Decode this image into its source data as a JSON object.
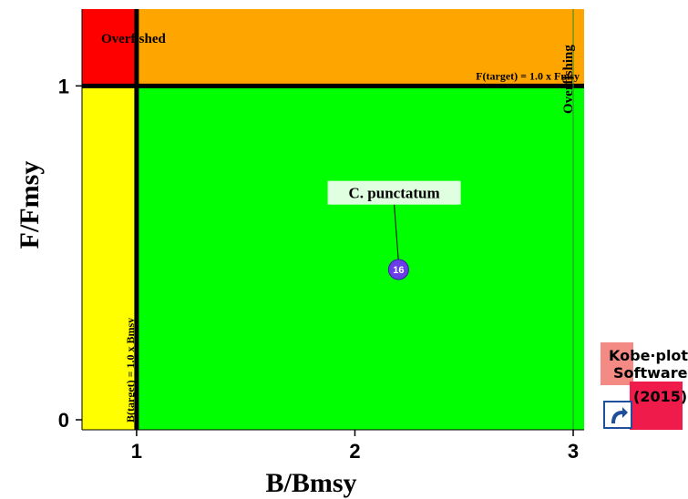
{
  "chart_data": {
    "type": "scatter",
    "title": "",
    "xlabel": "B/Bmsy",
    "ylabel": "F/Fmsy",
    "xlim": [
      0.75,
      3.05
    ],
    "ylim": [
      -0.03,
      1.23
    ],
    "x_ticks": [
      "1",
      "2",
      "3"
    ],
    "y_ticks": [
      "0",
      "1"
    ],
    "x_tick_values": [
      1,
      2,
      3
    ],
    "y_tick_values": [
      0,
      1
    ],
    "regions": [
      {
        "name": "overfished-overfishing",
        "color": "#ff0000"
      },
      {
        "name": "overfishing",
        "color": "#ffa500"
      },
      {
        "name": "overfished",
        "color": "#ffff00"
      },
      {
        "name": "healthy",
        "color": "#00ff00"
      }
    ],
    "reference_lines": [
      {
        "axis": "y",
        "value": 1.0,
        "label": "F(target) = 1.0 x Fmsy"
      },
      {
        "axis": "x",
        "value": 1.0,
        "label": "B(target) = 1.0 x Bmsy"
      }
    ],
    "region_labels": {
      "overfished": "Overfished",
      "overfishing": "Overfishing"
    },
    "points": [
      {
        "x": 2.2,
        "y": 0.45,
        "label": "16",
        "name": "C. punctatum",
        "color": "#6a3de8",
        "callout_x": 2.18,
        "callout_y": 0.68
      }
    ],
    "grid": false
  },
  "logo": {
    "line1": "Kobe·plot",
    "line2": "Software",
    "line3": "(2015)",
    "icon": "arrow-curve-icon"
  }
}
